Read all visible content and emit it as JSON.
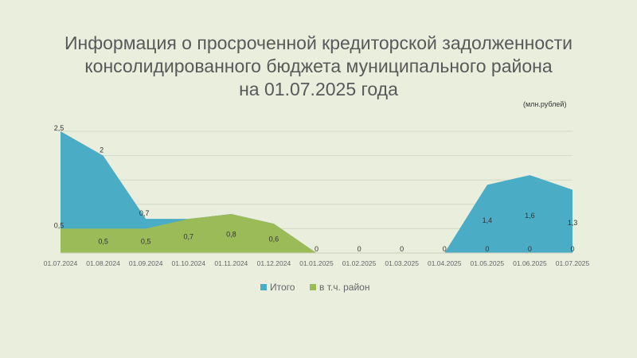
{
  "title_lines": [
    "Информация о просроченной кредиторской задолженности",
    "консолидированного бюджета муниципального района",
    "на 01.07.2025 года"
  ],
  "unit": "(млн.рублей)",
  "colors": {
    "total": "#4bacc6",
    "district": "#9bbb59",
    "background": "#e9eedd"
  },
  "chart_data": {
    "type": "area",
    "categories": [
      "01.07.2024",
      "01.08.2024",
      "01.09.2024",
      "01.10.2024",
      "01.11.2024",
      "01.12.2024",
      "01.01.2025",
      "01.02.2025",
      "01.03.2025",
      "01.04.2025",
      "01.05.2025",
      "01.06.2025",
      "01.07.2025"
    ],
    "series": [
      {
        "name": "Итого",
        "values": [
          2.5,
          2,
          0.7,
          0.7,
          0.8,
          0.6,
          0,
          0,
          0,
          0,
          1.4,
          1.6,
          1.3
        ],
        "labels": [
          "2,5",
          "2",
          "0,7",
          "",
          "",
          "",
          "",
          "",
          "",
          "",
          "1,4",
          "1,6",
          "1,3"
        ],
        "color": "#4bacc6"
      },
      {
        "name": "в т.ч. район",
        "values": [
          0.5,
          0.5,
          0.5,
          0.7,
          0.8,
          0.6,
          0,
          0,
          0,
          0,
          0,
          0,
          0
        ],
        "labels": [
          "0,5",
          "0,5",
          "0,5",
          "0,7",
          "0,8",
          "0,6",
          "0",
          "0",
          "0",
          "0",
          "0",
          "0",
          "0"
        ],
        "color": "#9bbb59"
      }
    ],
    "ylim": [
      0,
      2.5
    ],
    "grid": true,
    "legend_position": "bottom"
  }
}
